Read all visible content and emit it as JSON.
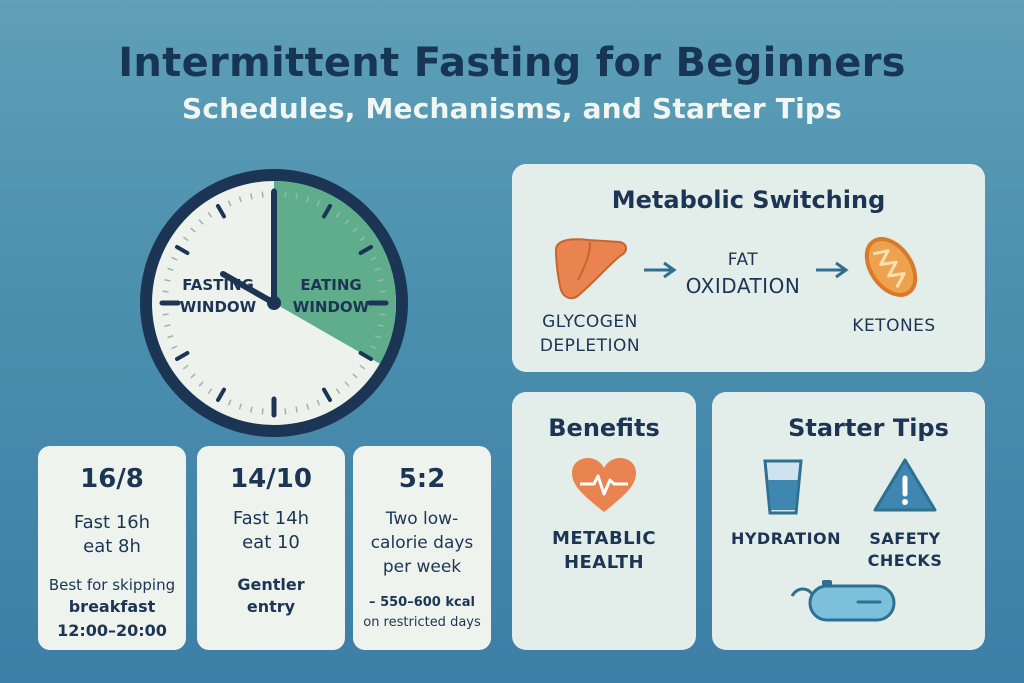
{
  "header": {
    "title": "Intermittent Fasting for Beginners",
    "subtitle": "Schedules, Mechanisms, and Starter Tips"
  },
  "clock": {
    "fasting_line1": "FASTING",
    "fasting_line2": "WINDOW",
    "eating_line1": "EATING",
    "eating_line2": "WINDOW",
    "eating_fraction": 0.333,
    "colors": {
      "eating": "#5fad8a",
      "face": "#eef2ec",
      "rim": "#1c3554"
    }
  },
  "schedules": [
    {
      "name": "16/8",
      "line1": "Fast 16h",
      "line2": "eat 8h",
      "note1": "Best for skipping",
      "note2": "breakfast",
      "note3": "12:00–20:00"
    },
    {
      "name": "14/10",
      "line1": "Fast 14h",
      "line2": "eat 10",
      "note1": "Gentler",
      "note2": "entry"
    },
    {
      "name": "5:2",
      "line1": "Two low-",
      "line2": "calorie days",
      "line3": "per week",
      "note1": "– 550–600 kcal",
      "note2": "on restricted days"
    }
  ],
  "metabolic": {
    "title": "Metabolic Switching",
    "step1_line1": "GLYCOGEN",
    "step1_line2": "DEPLETION",
    "step2_line1": "FAT",
    "step2_line2": "OXIDATION",
    "step3": "KETONES",
    "icons": [
      "liver-icon",
      "arrow-right-icon",
      "mitochondria-icon"
    ]
  },
  "benefits": {
    "title": "Benefits",
    "label_line1": "METABLIC",
    "label_line2": "HEALTH",
    "icon": "heart-pulse-icon",
    "color": "#e9834f"
  },
  "tips": {
    "title": "Starter Tips",
    "tip1": "HYDRATION",
    "tip2_line1": "SAFETY",
    "tip2_line2": "CHECKS",
    "icons": [
      "water-glass-icon",
      "warning-icon",
      "scale-icon"
    ]
  }
}
